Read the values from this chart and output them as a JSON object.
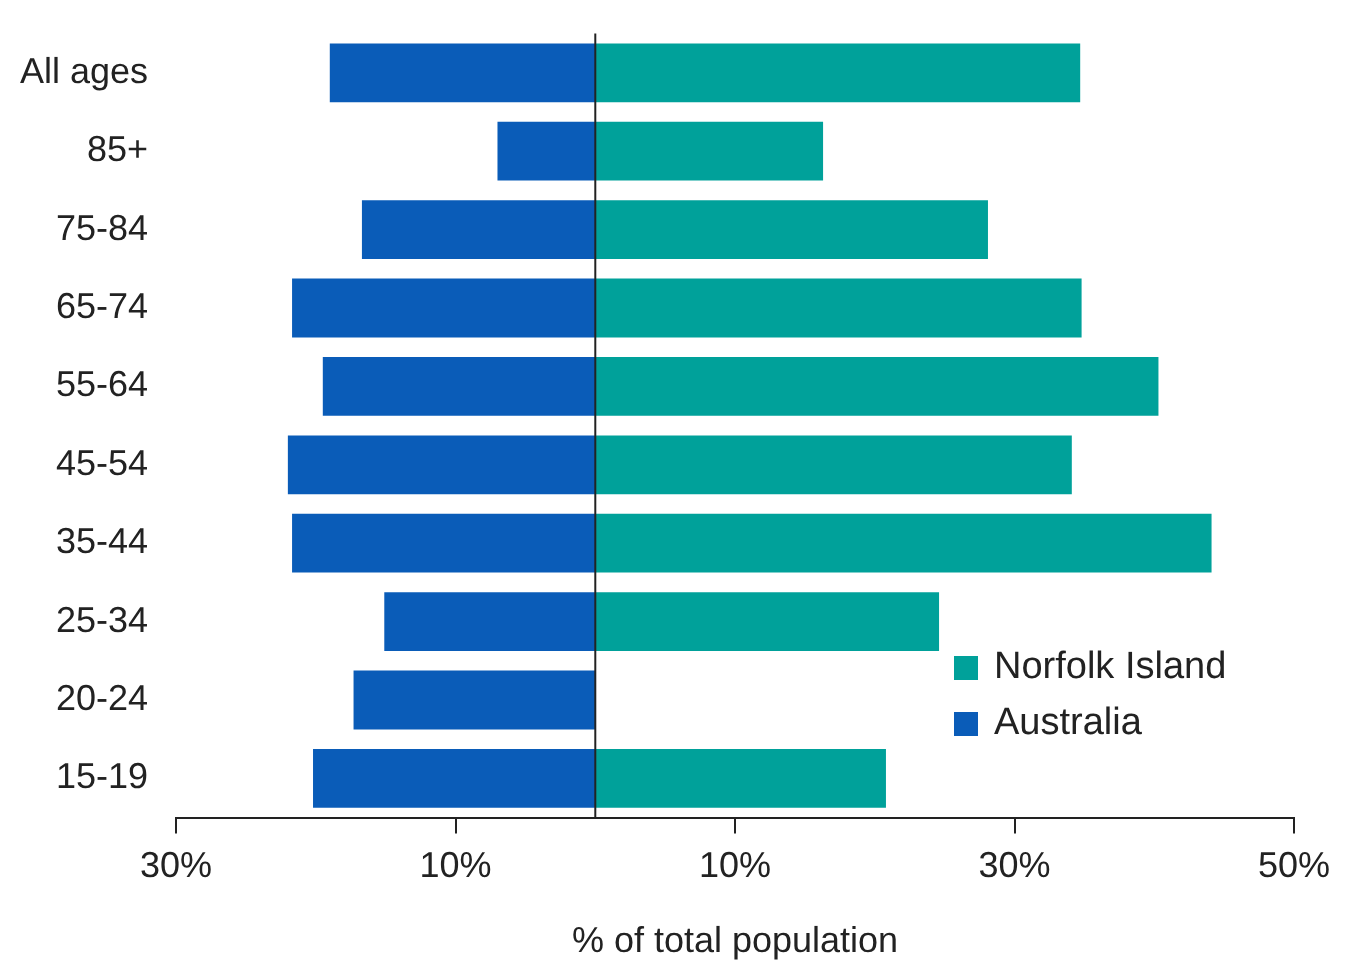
{
  "chart_data": {
    "type": "bar",
    "orientation": "horizontal",
    "stacked": true,
    "xlabel": "% of total population",
    "categories": [
      "All ages",
      "85+",
      "75-84",
      "65-74",
      "55-64",
      "45-54",
      "35-44",
      "25-34",
      "20-24",
      "15-19"
    ],
    "series": [
      {
        "name": "Norfolk Island",
        "color": "#00a19a",
        "values": [
          34.7,
          16.3,
          28.1,
          34.8,
          40.3,
          34.1,
          44.1,
          24.6,
          0,
          20.8
        ]
      },
      {
        "name": "Australia",
        "color": "#0a5cb8",
        "values": [
          -19,
          -7,
          -16.7,
          -21.7,
          -19.5,
          -22,
          -21.7,
          -15.1,
          -17.3,
          -20.2
        ]
      }
    ],
    "xlim": [
      -30,
      50
    ],
    "xticks": [
      {
        "value": -30,
        "label": "30%"
      },
      {
        "value": -10,
        "label": "10%"
      },
      {
        "value": 10,
        "label": "10%"
      },
      {
        "value": 30,
        "label": "30%"
      },
      {
        "value": 50,
        "label": "50%"
      }
    ],
    "grid": false,
    "legend": "bottom right"
  }
}
